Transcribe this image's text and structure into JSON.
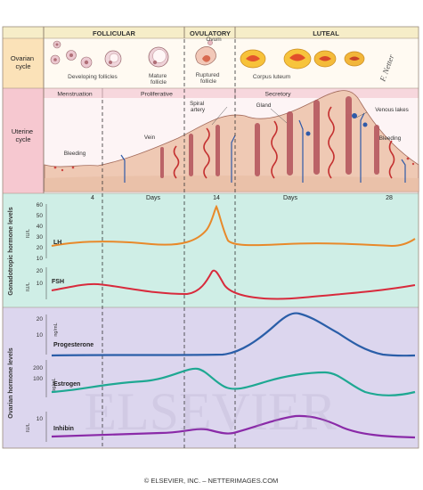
{
  "phases": {
    "follicular": "FOLLICULAR",
    "ovulatory": "OVULATORY",
    "luteal": "LUTEAL"
  },
  "ovarian": {
    "label_line1": "Ovarian",
    "label_line2": "cycle",
    "ovum": "Ovum",
    "developing": "Developing follicles",
    "mature_line1": "Mature",
    "mature_line2": "follicle",
    "ruptured_line1": "Ruptured",
    "ruptured_line2": "follicle",
    "corpus": "Corpus luteum",
    "signature": "F. Netter"
  },
  "uterine": {
    "label_line1": "Uterine",
    "label_line2": "cycle",
    "menstruation": "Menstruation",
    "proliferative": "Proliferative",
    "secretory": "Secretory",
    "spiral_line1": "Spiral",
    "spiral_line2": "artery",
    "gland": "Gland",
    "vein": "Vein",
    "venous_line1": "Venous lakes",
    "bleeding_right": "Bleeding",
    "bleeding_left": "Bleeding",
    "days_a": "Days",
    "days_b": "Days",
    "day4": "4",
    "day14": "14",
    "day28": "28"
  },
  "gonadotropic": {
    "group_label": "Gonadotropic hormone levels",
    "lh": "LH",
    "fsh": "FSH",
    "unit": "IU/L",
    "ticks_lh": [
      "60",
      "50",
      "40",
      "30",
      "20",
      "10"
    ],
    "ticks_fsh": [
      "20",
      "10"
    ]
  },
  "ovarian_hormones": {
    "group_label": "Ovarian hormone levels",
    "progesterone": "Progesterone",
    "estrogen": "Estrogen",
    "inhibin": "Inhibin",
    "unit_prog": "ng/mL",
    "unit_estr": "pg/mL",
    "unit_inh": "IU/L",
    "ticks_prog": [
      "20",
      "10"
    ],
    "ticks_estr": [
      "200",
      "100"
    ],
    "ticks_inh": [
      "10"
    ]
  },
  "watermark": "ELSEVIER",
  "footer": "© ELSEVIER, INC. – NETTERIMAGES.COM",
  "colors": {
    "lh": "#e8892a",
    "fsh": "#d82a3c",
    "progesterone": "#2a5ea8",
    "estrogen": "#1ea892",
    "inhibin": "#8a2aa8",
    "header_bg": "#f6edc8",
    "ovarian_bg": "#fbecd0",
    "uterine_bg": "#fae0e4",
    "gonad_bg": "#cfeee6",
    "ovarian_hormone_bg": "#dcd6ee"
  }
}
